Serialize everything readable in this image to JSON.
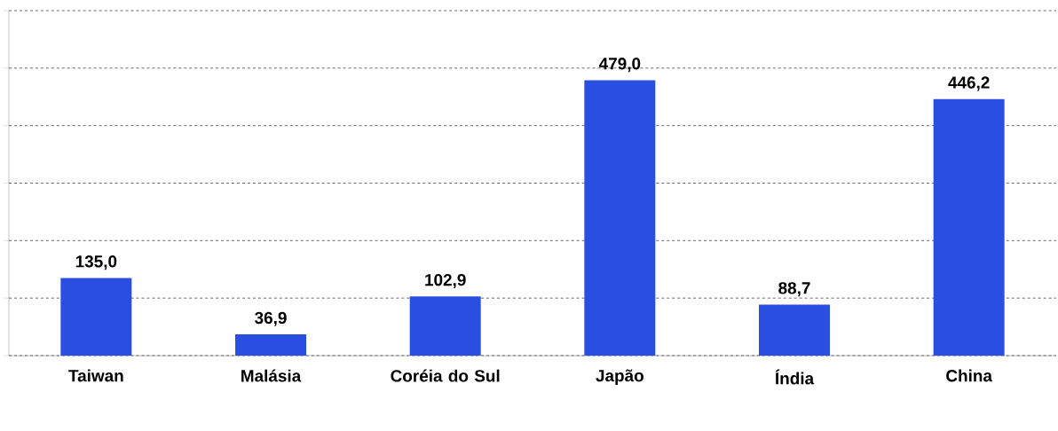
{
  "chart_data": {
    "type": "bar",
    "categories": [
      "Taiwan",
      "Malásia",
      "Coréia do Sul",
      "Japão",
      "Índia",
      "China"
    ],
    "values": [
      135.0,
      36.9,
      102.9,
      479.0,
      88.7,
      446.2
    ],
    "value_labels": [
      "135,0",
      "36,9",
      "102,9",
      "479,0",
      "88,7",
      "446,2"
    ],
    "color": "#2a4fe0",
    "ylim": [
      0,
      600
    ],
    "yticks": [
      {
        "value": 0,
        "label": null
      },
      {
        "value": 100,
        "label": null
      },
      {
        "value": 200,
        "label": null
      },
      {
        "value": 300,
        "label": null
      },
      {
        "value": 400,
        "label": null
      },
      {
        "value": 500,
        "label": null
      },
      {
        "value": 600,
        "label": null
      }
    ],
    "grid": "y",
    "tick_labels": "x"
  }
}
